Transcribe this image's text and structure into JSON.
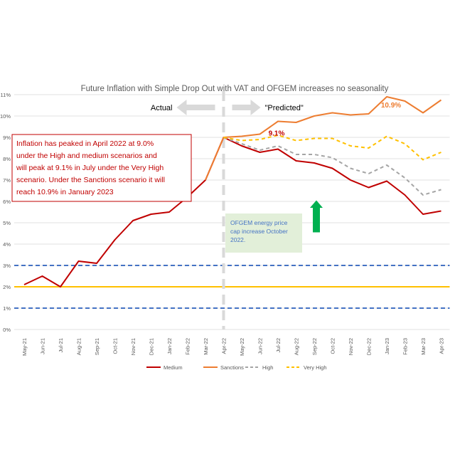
{
  "chart_data": {
    "type": "line",
    "title": "Future Inflation with Simple Drop Out with VAT and OFGEM  increases no seasonality",
    "xlabel": "",
    "ylabel": "",
    "ylim": [
      0,
      11
    ],
    "y_ticks": [
      "0%",
      "1%",
      "2%",
      "3%",
      "4%",
      "5%",
      "6%",
      "7%",
      "8%",
      "9%",
      "10%",
      "11%"
    ],
    "categories": [
      "May-21",
      "Jun-21",
      "Jul-21",
      "Aug-21",
      "Sep-21",
      "Oct-21",
      "Nov-21",
      "Dec-21",
      "Jan-22",
      "Feb-22",
      "Mar-22",
      "Apr-22",
      "May-22",
      "Jun-22",
      "Jul-22",
      "Aug-22",
      "Sep-22",
      "Oct-22",
      "Nov-22",
      "Dec-22",
      "Jan-23",
      "Feb-23",
      "Mar-23",
      "Apr-23"
    ],
    "grid": "horizontal",
    "legend_position": "bottom",
    "series": [
      {
        "name": "Medium",
        "color": "#c00000",
        "style": "solid",
        "values": [
          2.1,
          2.5,
          2.0,
          3.2,
          3.1,
          4.2,
          5.1,
          5.4,
          5.5,
          6.2,
          7.0,
          9.0,
          8.6,
          8.3,
          8.45,
          7.9,
          7.8,
          7.55,
          7.0,
          6.65,
          6.95,
          6.3,
          5.4,
          5.55
        ]
      },
      {
        "name": "Sanctions",
        "color": "#ed7d31",
        "style": "solid",
        "values": [
          null,
          null,
          null,
          null,
          null,
          null,
          null,
          null,
          null,
          null,
          7.0,
          9.0,
          9.05,
          9.15,
          9.75,
          9.7,
          10.0,
          10.15,
          10.05,
          10.1,
          10.9,
          10.7,
          10.15,
          10.75
        ]
      },
      {
        "name": "High",
        "color": "#a5a5a5",
        "style": "dashed",
        "values": [
          null,
          null,
          null,
          null,
          null,
          null,
          null,
          null,
          null,
          null,
          null,
          9.0,
          8.7,
          8.4,
          8.6,
          8.2,
          8.2,
          8.05,
          7.55,
          7.3,
          7.7,
          7.1,
          6.3,
          6.55
        ]
      },
      {
        "name": "Very High",
        "color": "#ffc000",
        "style": "dashed",
        "values": [
          null,
          null,
          null,
          null,
          null,
          null,
          null,
          null,
          null,
          null,
          null,
          9.0,
          8.85,
          8.9,
          9.1,
          8.85,
          8.95,
          8.95,
          8.6,
          8.5,
          9.05,
          8.7,
          7.95,
          8.3
        ]
      }
    ],
    "reference_lines": [
      {
        "value": 3.0,
        "color": "#4472c4",
        "style": "dashed"
      },
      {
        "value": 2.0,
        "color": "#ffc000",
        "style": "solid"
      },
      {
        "value": 1.0,
        "color": "#4472c4",
        "style": "dashed"
      }
    ],
    "divider_category": "Apr-22",
    "annotations": {
      "actual_label": "Actual",
      "predicted_label": "\"Predicted\"",
      "peak_label_high": "9.1%",
      "peak_label_sanctions": "10.9%",
      "textbox_lines": [
        "Inflation has peaked  in April 2022 at 9.0%",
        "under the High and medium scenarios and",
        "will peak at 9.1% in July under the Very High",
        "scenario. Under the Sanctions scenario it will",
        "reach 10.9% in January 2023"
      ],
      "ofgem_lines": [
        "OFGEM energy price",
        "cap increase October",
        "2022."
      ]
    },
    "colors": {
      "textbox_border": "#c00000",
      "textbox_text": "#c00000",
      "ofgem_bg": "#e2efd9",
      "ofgem_text": "#4472c4",
      "green_arrow": "#00b050",
      "gray_arrow": "#d9d9d9"
    }
  }
}
